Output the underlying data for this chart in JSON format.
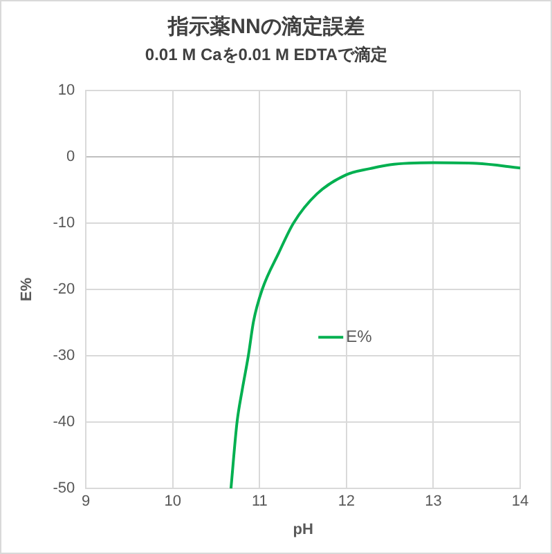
{
  "chart_data": {
    "type": "line",
    "title": "指示薬NNの滴定誤差",
    "subtitle": "0.01 M Caを0.01 M EDTAで滴定",
    "xlabel": "pH",
    "ylabel": "E%",
    "xlim": [
      9,
      14
    ],
    "xticks": [
      9,
      10,
      11,
      12,
      13,
      14
    ],
    "ylim": [
      -50,
      10
    ],
    "yticks": [
      -50,
      -40,
      -30,
      -20,
      -10,
      0,
      10
    ],
    "grid": true,
    "legend": "center",
    "marker": "none",
    "line_style": "solid",
    "series": [
      {
        "name": "E%",
        "color": "#00b050",
        "x": [
          10.67,
          10.74,
          10.8,
          10.87,
          10.93,
          11.03,
          11.22,
          11.39,
          11.66,
          12.0,
          12.27,
          12.5,
          13.0,
          13.5,
          14.0
        ],
        "values": [
          -50,
          -40,
          -35.1,
          -30,
          -24.8,
          -20,
          -14.5,
          -10,
          -5.6,
          -2.7,
          -1.8,
          -1.2,
          -0.9,
          -1.0,
          -1.7
        ]
      }
    ]
  }
}
